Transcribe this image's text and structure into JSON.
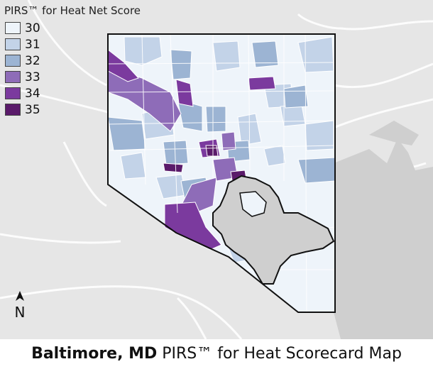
{
  "legend": {
    "title": "PIRS™ for Heat Net Score",
    "items": [
      {
        "label": "30",
        "color": "#eef4fa"
      },
      {
        "label": "31",
        "color": "#c3d3e8"
      },
      {
        "label": "32",
        "color": "#9cb4d3"
      },
      {
        "label": "33",
        "color": "#8e6cb8"
      },
      {
        "label": "34",
        "color": "#7b3a9e"
      },
      {
        "label": "35",
        "color": "#5a1a6a"
      }
    ]
  },
  "north_arrow": {
    "label": "N"
  },
  "footer": {
    "city": "Baltimore, MD",
    "subtitle": "PIRS™ for Heat Scorecard Map"
  },
  "colors": {
    "background": "#e6e6e6",
    "water": "#cfcfcf",
    "roads": "#ffffff",
    "boundary": "#111111"
  }
}
